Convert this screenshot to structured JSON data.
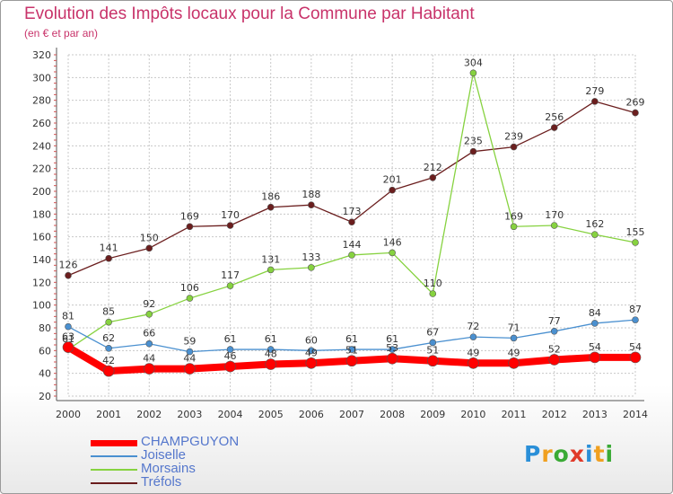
{
  "header": {
    "title": "Evolution des Impôts locaux pour la Commune par Habitant",
    "subtitle": "(en € et par an)"
  },
  "chart_data": {
    "type": "line",
    "title": "Evolution des Impôts locaux pour la Commune par Habitant",
    "subtitle": "(en € et par an)",
    "xlabel": "",
    "ylabel": "",
    "ylim": [
      20,
      320
    ],
    "y_ticks": [
      20,
      40,
      60,
      80,
      100,
      120,
      140,
      160,
      180,
      200,
      220,
      240,
      260,
      280,
      300,
      320
    ],
    "grid": true,
    "legend_position": "bottom-left",
    "x": [
      "2000",
      "2001",
      "2002",
      "2003",
      "2004",
      "2005",
      "2006",
      "2007",
      "2008",
      "2009",
      "2010",
      "2011",
      "2012",
      "2013",
      "2014"
    ],
    "series": [
      {
        "name": "Tréfols",
        "color": "#6b1e1e",
        "line_width": 1.3,
        "marker_radius": 3.5,
        "values": [
          126,
          141,
          150,
          169,
          170,
          186,
          188,
          173,
          201,
          212,
          235,
          239,
          256,
          279,
          269
        ]
      },
      {
        "name": "Morsains",
        "color": "#86d23f",
        "line_width": 1.3,
        "marker_radius": 3.5,
        "values": [
          61,
          85,
          92,
          106,
          117,
          131,
          133,
          144,
          146,
          110,
          304,
          169,
          170,
          162,
          155
        ]
      },
      {
        "name": "Joiselle",
        "color": "#4a90d0",
        "line_width": 1.3,
        "marker_radius": 3.5,
        "values": [
          81,
          62,
          66,
          59,
          61,
          61,
          60,
          61,
          61,
          67,
          72,
          71,
          77,
          84,
          87
        ]
      },
      {
        "name": "CHAMPGUYON",
        "color": "#ff0000",
        "line_width": 8,
        "marker_radius": 6,
        "values": [
          63,
          42,
          44,
          44,
          46,
          48,
          49,
          51,
          53,
          51,
          49,
          49,
          52,
          54,
          54
        ]
      }
    ]
  },
  "legend": {
    "items": [
      {
        "label": "CHAMPGUYON",
        "color": "#ff0000",
        "height": 7
      },
      {
        "label": "Joiselle",
        "color": "#4a90d0",
        "height": 2
      },
      {
        "label": "Morsains",
        "color": "#86d23f",
        "height": 2
      },
      {
        "label": "Tréfols",
        "color": "#6b1e1e",
        "height": 2
      }
    ]
  },
  "logo": {
    "letters": [
      "P",
      "r",
      "o",
      "x",
      "i",
      "t",
      "i"
    ],
    "colors": [
      "#2a8fd8",
      "#f0a020",
      "#3aaa35",
      "#e03a2a",
      "#2a8fd8",
      "#f0a020",
      "#3aaa35"
    ]
  }
}
